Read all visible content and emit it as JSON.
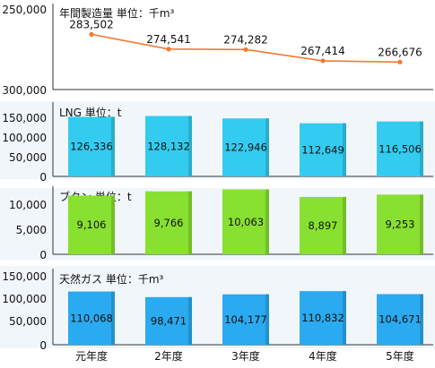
{
  "chart_data": [
    {
      "type": "line",
      "title": "年間製造量 単位：千m³",
      "categories": [
        "元年度",
        "2年度",
        "3年度",
        "4年度",
        "5年度"
      ],
      "values": [
        283502,
        274541,
        274282,
        267414,
        266676
      ],
      "value_labels": [
        "283,502",
        "274,541",
        "274,282",
        "267,414",
        "266,676"
      ],
      "yticks": [
        "250,000",
        "300,000"
      ],
      "ylim": [
        250000,
        300000
      ],
      "color": "#f07a30"
    },
    {
      "type": "bar",
      "title": "LNG 単位：t",
      "categories": [
        "元年度",
        "2年度",
        "3年度",
        "4年度",
        "5年度"
      ],
      "values": [
        126336,
        128132,
        122946,
        112649,
        116506
      ],
      "value_labels": [
        "126,336",
        "128,132",
        "122,946",
        "112,649",
        "116,506"
      ],
      "yticks": [
        "0",
        "50,000",
        "100,000",
        "150,000"
      ],
      "ylim": [
        0,
        150000
      ],
      "color": "#33ccf0"
    },
    {
      "type": "bar",
      "title": "ブタン 単位：t",
      "categories": [
        "元年度",
        "2年度",
        "3年度",
        "4年度",
        "5年度"
      ],
      "values": [
        9106,
        9766,
        10063,
        8897,
        9253
      ],
      "value_labels": [
        "9,106",
        "9,766",
        "10,063",
        "8,897",
        "9,253"
      ],
      "yticks": [
        "0",
        "5,000",
        "10,000"
      ],
      "ylim": [
        0,
        10000
      ],
      "color": "#88e030"
    },
    {
      "type": "bar",
      "title": "天然ガス 単位：千m³",
      "categories": [
        "元年度",
        "2年度",
        "3年度",
        "4年度",
        "5年度"
      ],
      "values": [
        110068,
        98471,
        104177,
        110832,
        104671
      ],
      "value_labels": [
        "110,068",
        "98,471",
        "104,177",
        "110,832",
        "104,671"
      ],
      "yticks": [
        "0",
        "50,000",
        "100,000",
        "150,000"
      ],
      "ylim": [
        0,
        150000
      ],
      "color": "#2aaaf0"
    }
  ],
  "x_axis_labels": [
    "元年度",
    "2年度",
    "3年度",
    "4年度",
    "5年度"
  ]
}
